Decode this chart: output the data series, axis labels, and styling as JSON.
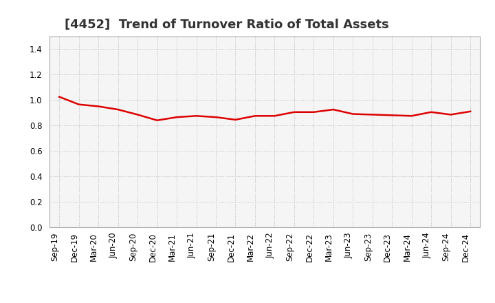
{
  "title": "[4452]  Trend of Turnover Ratio of Total Assets",
  "x_labels": [
    "Sep-19",
    "Dec-19",
    "Mar-20",
    "Jun-20",
    "Sep-20",
    "Dec-20",
    "Mar-21",
    "Jun-21",
    "Sep-21",
    "Dec-21",
    "Mar-22",
    "Jun-22",
    "Sep-22",
    "Dec-22",
    "Mar-23",
    "Jun-23",
    "Sep-23",
    "Dec-23",
    "Mar-24",
    "Jun-24",
    "Sep-24",
    "Dec-24"
  ],
  "values": [
    1.025,
    0.965,
    0.95,
    0.925,
    0.885,
    0.84,
    0.865,
    0.875,
    0.865,
    0.845,
    0.875,
    0.875,
    0.905,
    0.905,
    0.925,
    0.89,
    0.885,
    0.88,
    0.875,
    0.905,
    0.885,
    0.91
  ],
  "line_color": "#dd0000",
  "line_width": 1.8,
  "ylim": [
    0.0,
    1.5
  ],
  "yticks": [
    0.0,
    0.2,
    0.4,
    0.6,
    0.8,
    1.0,
    1.2,
    1.4
  ],
  "grid_color": "#bbbbbb",
  "grid_style": "dotted",
  "background_color": "#ffffff",
  "plot_bg_color": "#f5f5f5",
  "title_fontsize": 13,
  "tick_fontsize": 8.5,
  "title_color": "#333333",
  "spine_color": "#aaaaaa"
}
